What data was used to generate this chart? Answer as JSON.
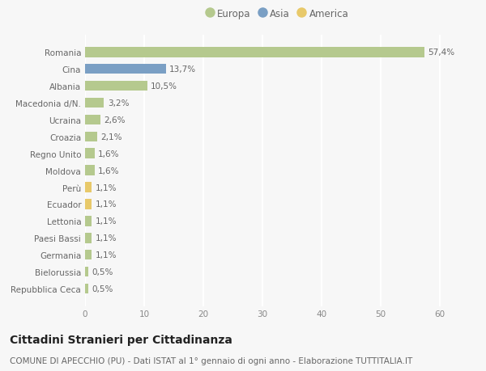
{
  "countries": [
    "Romania",
    "Cina",
    "Albania",
    "Macedonia d/N.",
    "Ucraina",
    "Croazia",
    "Regno Unito",
    "Moldova",
    "Perù",
    "Ecuador",
    "Lettonia",
    "Paesi Bassi",
    "Germania",
    "Bielorussia",
    "Repubblica Ceca"
  ],
  "values": [
    57.4,
    13.7,
    10.5,
    3.2,
    2.6,
    2.1,
    1.6,
    1.6,
    1.1,
    1.1,
    1.1,
    1.1,
    1.1,
    0.5,
    0.5
  ],
  "labels": [
    "57,4%",
    "13,7%",
    "10,5%",
    "3,2%",
    "2,6%",
    "2,1%",
    "1,6%",
    "1,6%",
    "1,1%",
    "1,1%",
    "1,1%",
    "1,1%",
    "1,1%",
    "0,5%",
    "0,5%"
  ],
  "continents": [
    "Europa",
    "Asia",
    "Europa",
    "Europa",
    "Europa",
    "Europa",
    "Europa",
    "Europa",
    "America",
    "America",
    "Europa",
    "Europa",
    "Europa",
    "Europa",
    "Europa"
  ],
  "colors": {
    "Europa": "#b5c98e",
    "Asia": "#7a9fc4",
    "America": "#e8c96a"
  },
  "bg_color": "#f7f7f7",
  "bar_alpha": 1.0,
  "xlim": [
    0,
    65
  ],
  "xticks": [
    0,
    10,
    20,
    30,
    40,
    50,
    60
  ],
  "title": "Cittadini Stranieri per Cittadinanza",
  "subtitle": "COMUNE DI APECCHIO (PU) - Dati ISTAT al 1° gennaio di ogni anno - Elaborazione TUTTITALIA.IT",
  "title_fontsize": 10,
  "subtitle_fontsize": 7.5,
  "label_fontsize": 7.5,
  "tick_fontsize": 7.5,
  "legend_fontsize": 8.5,
  "grid_color": "#ffffff",
  "spine_color": "#cccccc",
  "legend_order": [
    "Europa",
    "Asia",
    "America"
  ]
}
